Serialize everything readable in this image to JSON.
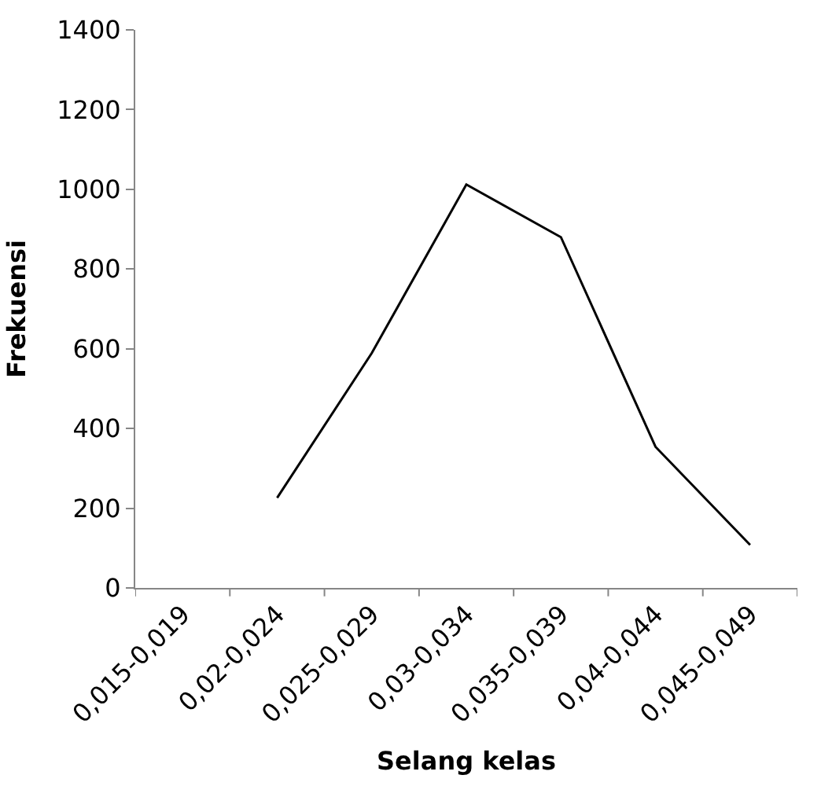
{
  "chart_data": {
    "type": "line",
    "xlabel": "Selang kelas",
    "ylabel": "Frekuensi",
    "categories": [
      "0,015-0,019",
      "0,02-0,024",
      "0,025-0,029",
      "0,03-0,034",
      "0,035-0,039",
      "0,04-0,044",
      "0,045-0,049"
    ],
    "series": [
      {
        "color": "#000000",
        "values": [
          null,
          226,
          589,
          1012,
          880,
          354,
          108
        ]
      }
    ],
    "ylim": [
      0,
      1400
    ],
    "yticks": [
      0,
      200,
      400,
      600,
      800,
      1000,
      1200,
      1400
    ],
    "marker": "none",
    "line_style": "solid"
  }
}
